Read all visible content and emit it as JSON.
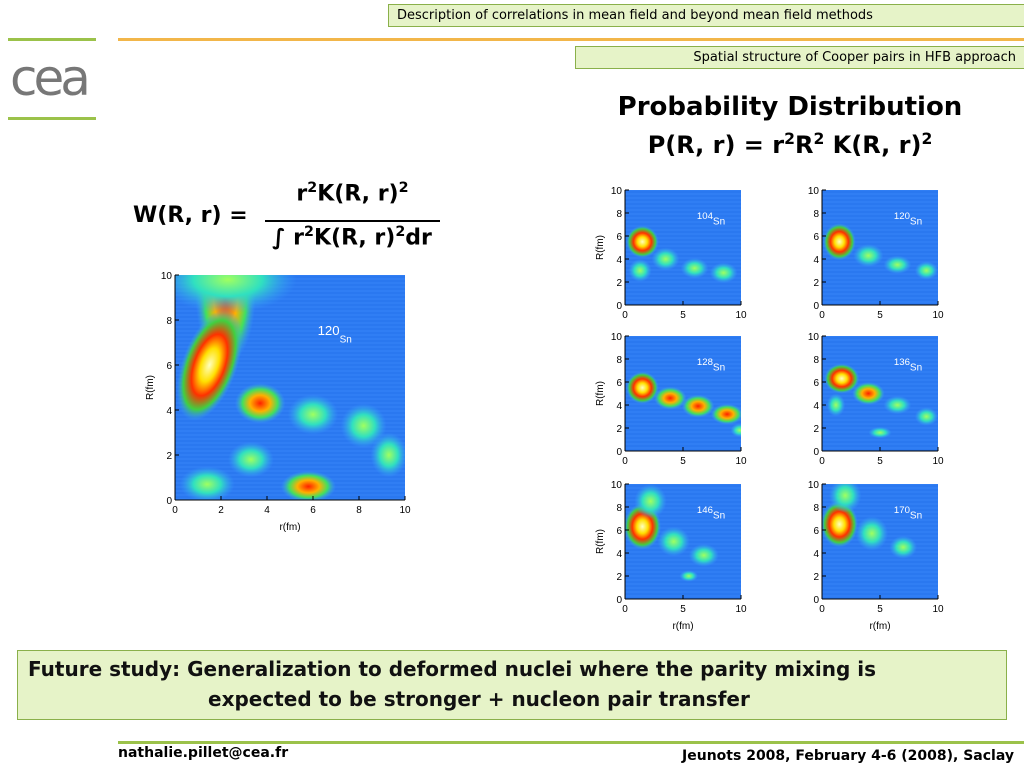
{
  "header": {
    "logo": "cea",
    "topic": "Description of correlations in mean field and beyond mean field methods",
    "subtopic": "Spatial structure of Cooper pairs in HFB approach"
  },
  "title": {
    "line1": "Probability Distribution",
    "formula": [
      "P(R, r) =  r",
      "2",
      "R",
      "2",
      "  K(R, r)",
      "2"
    ]
  },
  "weight_formula": {
    "lhs": "W(R, r) =",
    "numerator": [
      "r",
      "2",
      "K(R, r)",
      "2"
    ],
    "denominator": [
      "∫ r",
      "2",
      "K(R, r)",
      "2",
      "dr"
    ]
  },
  "main_plot": {
    "nucleus": {
      "mass": "120",
      "element": "Sn"
    },
    "xticks": [
      0,
      2,
      4,
      6,
      8,
      10
    ],
    "yticks": [
      0,
      2,
      4,
      6,
      8,
      10
    ],
    "xlabel": "r(fm)",
    "ylabel": "R(fm)"
  },
  "small_plots": {
    "xticks": [
      0,
      5,
      10
    ],
    "yticks": [
      0,
      2,
      4,
      6,
      8,
      10
    ],
    "xlabel": "r(fm)",
    "ylabel": "R(fm)",
    "nuclei": [
      {
        "mass": "104",
        "element": "Sn"
      },
      {
        "mass": "120",
        "element": "Sn"
      },
      {
        "mass": "128",
        "element": "Sn"
      },
      {
        "mass": "136",
        "element": "Sn"
      },
      {
        "mass": "146",
        "element": "Sn"
      },
      {
        "mass": "170",
        "element": "Sn"
      }
    ]
  },
  "footer_box": {
    "line1": "Future study: Generalization to deformed nuclei where the parity mixing is",
    "line2": "expected to be stronger + nucleon pair transfer"
  },
  "footer": {
    "email": "nathalie.pillet@cea.fr",
    "event": "Jeunots 2008, February 4-6 (2008), Saclay"
  }
}
